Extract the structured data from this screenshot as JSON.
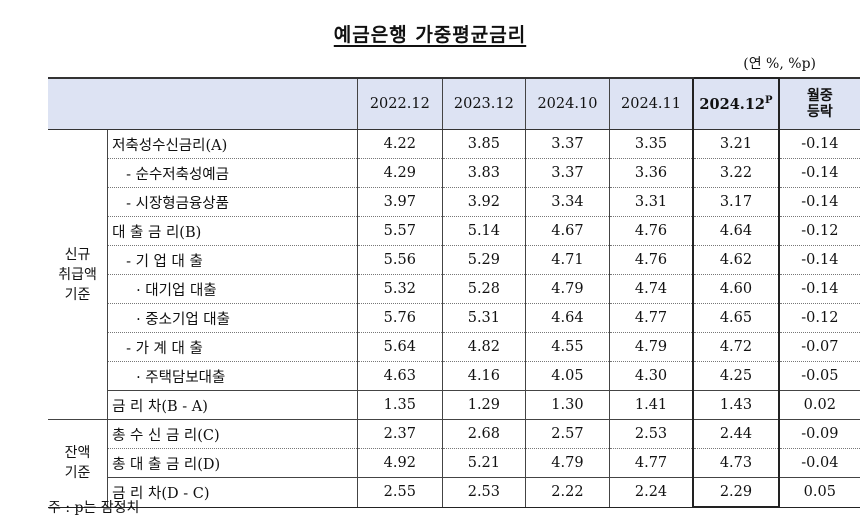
{
  "title": "예금은행 가중평균금리",
  "unit": "(연 %, %p)",
  "header": {
    "columns": [
      "2022.12",
      "2023.12",
      "2024.10",
      "2024.11",
      "2024.12"
    ],
    "highlight_sup": "P",
    "change_label_line1": "월중",
    "change_label_line2": "등락"
  },
  "groups": {
    "new": {
      "line1": "신규",
      "line2": "취급액",
      "line3": "기준"
    },
    "balance": {
      "line1": "잔액",
      "line2": "기준"
    }
  },
  "rows": [
    {
      "label": "저축성수신금리(A)",
      "v1": "4.22",
      "v2": "3.85",
      "v3": "3.37",
      "v4": "3.35",
      "v5": "3.21",
      "chg": "-0.14"
    },
    {
      "label": "- 순수저축성예금",
      "v1": "4.29",
      "v2": "3.83",
      "v3": "3.37",
      "v4": "3.36",
      "v5": "3.22",
      "chg": "-0.14"
    },
    {
      "label": "- 시장형금융상품",
      "v1": "3.97",
      "v2": "3.92",
      "v3": "3.34",
      "v4": "3.31",
      "v5": "3.17",
      "chg": "-0.14"
    },
    {
      "label": "대 출 금 리(B)",
      "v1": "5.57",
      "v2": "5.14",
      "v3": "4.67",
      "v4": "4.76",
      "v5": "4.64",
      "chg": "-0.12"
    },
    {
      "label": "- 기 업 대 출",
      "v1": "5.56",
      "v2": "5.29",
      "v3": "4.71",
      "v4": "4.76",
      "v5": "4.62",
      "chg": "-0.14"
    },
    {
      "label": "· 대기업 대출",
      "v1": "5.32",
      "v2": "5.28",
      "v3": "4.79",
      "v4": "4.74",
      "v5": "4.60",
      "chg": "-0.14"
    },
    {
      "label": "· 중소기업 대출",
      "v1": "5.76",
      "v2": "5.31",
      "v3": "4.64",
      "v4": "4.77",
      "v5": "4.65",
      "chg": "-0.12"
    },
    {
      "label": "- 가 계 대 출",
      "v1": "5.64",
      "v2": "4.82",
      "v3": "4.55",
      "v4": "4.79",
      "v5": "4.72",
      "chg": "-0.07"
    },
    {
      "label": "· 주택담보대출",
      "v1": "4.63",
      "v2": "4.16",
      "v3": "4.05",
      "v4": "4.30",
      "v5": "4.25",
      "chg": "-0.05"
    },
    {
      "label": "금 리 차(B - A)",
      "v1": "1.35",
      "v2": "1.29",
      "v3": "1.30",
      "v4": "1.41",
      "v5": "1.43",
      "chg": "0.02"
    },
    {
      "label": "총 수 신 금 리(C)",
      "v1": "2.37",
      "v2": "2.68",
      "v3": "2.57",
      "v4": "2.53",
      "v5": "2.44",
      "chg": "-0.09"
    },
    {
      "label": "총 대 출 금 리(D)",
      "v1": "4.92",
      "v2": "5.21",
      "v3": "4.79",
      "v4": "4.77",
      "v5": "4.73",
      "chg": "-0.04"
    },
    {
      "label": "금 리 차(D - C)",
      "v1": "2.55",
      "v2": "2.53",
      "v3": "2.22",
      "v4": "2.24",
      "v5": "2.29",
      "chg": "0.05"
    }
  ],
  "note": "주 : p는 잠정치"
}
